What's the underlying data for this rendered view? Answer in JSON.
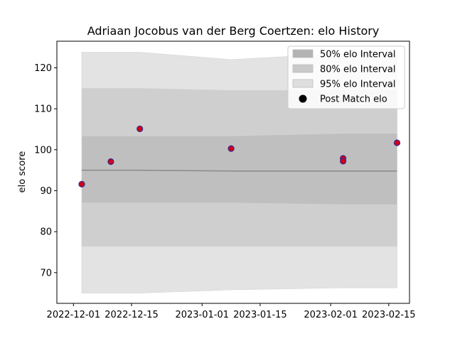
{
  "chart_data": {
    "type": "scatter",
    "title": "Adriaan Jocobus van der Berg Coertzen: elo History",
    "xlabel": "",
    "ylabel": "elo score",
    "xlim": [
      "2022-11-27",
      "2023-02-20"
    ],
    "ylim": [
      62.5,
      126.5
    ],
    "x_ticks": [
      "2022-12-01",
      "2022-12-15",
      "2023-01-01",
      "2023-01-15",
      "2023-02-01",
      "2023-02-15"
    ],
    "y_ticks": [
      70,
      80,
      90,
      100,
      110,
      120
    ],
    "grid": false,
    "legend_position": "upper right",
    "band_x": [
      "2022-12-03",
      "2022-12-17",
      "2023-01-08",
      "2023-02-04",
      "2023-02-17"
    ],
    "mean_line": [
      95.0,
      95.0,
      94.8,
      94.8,
      94.8
    ],
    "bands": [
      {
        "name": "95% elo Interval",
        "color": "#e3e3e3",
        "lower": [
          65.0,
          65.0,
          65.8,
          66.3,
          66.3
        ],
        "upper": [
          123.8,
          123.8,
          122.0,
          123.5,
          123.5
        ]
      },
      {
        "name": "80% elo Interval",
        "color": "#cfcfcf",
        "lower": [
          76.4,
          76.4,
          76.4,
          76.4,
          76.4
        ],
        "upper": [
          115.0,
          115.0,
          114.5,
          114.5,
          114.5
        ]
      },
      {
        "name": "50% elo Interval",
        "color": "#bfbfbf",
        "lower": [
          87.0,
          87.0,
          87.0,
          86.6,
          86.6
        ],
        "upper": [
          103.4,
          103.4,
          103.4,
          104.0,
          104.0
        ]
      }
    ],
    "series": [
      {
        "name": "Post Match elo",
        "x": [
          "2022-12-03",
          "2022-12-10",
          "2022-12-17",
          "2023-01-08",
          "2023-02-04",
          "2023-02-04",
          "2023-02-17"
        ],
        "y": [
          91.6,
          97.1,
          105.1,
          100.3,
          97.9,
          97.2,
          101.7
        ],
        "fill": "#d0001a",
        "stroke": "#3a2a8a"
      }
    ],
    "legend": [
      {
        "label": "50% elo Interval",
        "kind": "patch",
        "color": "#b3b3b3"
      },
      {
        "label": "80% elo Interval",
        "kind": "patch",
        "color": "#c9c9c9"
      },
      {
        "label": "95% elo Interval",
        "kind": "patch",
        "color": "#dedede"
      },
      {
        "label": "Post Match elo",
        "kind": "marker",
        "color": "#000000"
      }
    ]
  }
}
